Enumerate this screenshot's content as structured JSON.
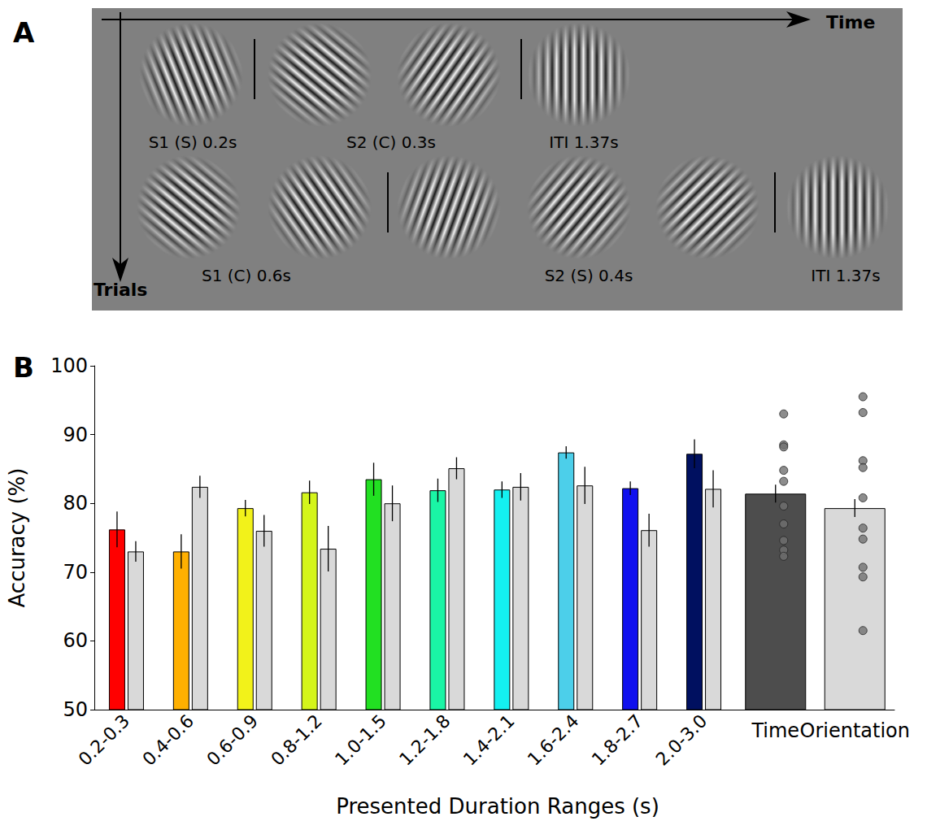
{
  "diagram": {
    "panel_label": "A",
    "x_axis": "Time",
    "y_axis": "Trials",
    "rows": [
      {
        "labels": [
          "S1 (S) 0.2s",
          "S2 (C) 0.3s",
          "ITI 1.37s"
        ]
      },
      {
        "labels": [
          "S1 (C) 0.6s",
          "S2 (S) 0.4s",
          "ITI 1.37s"
        ]
      }
    ]
  },
  "chart_data": {
    "type": "bar",
    "panel_label": "B",
    "xlabel": "Presented Duration Ranges (s)",
    "ylabel": "Accuracy (%)",
    "categories": [
      "0.2-0.3",
      "0.4-0.6",
      "0.6-0.9",
      "0.8-1.2",
      "1.0-1.5",
      "1.2-1.8",
      "1.4-2.1",
      "1.6-2.4",
      "1.8-2.7",
      "2.0-3.0"
    ],
    "series": [
      {
        "colors": [
          "#ff0000",
          "#ffb000",
          "#f2f21a",
          "#d4f51a",
          "#22e022",
          "#1af5a5",
          "#14f0f0",
          "#4ccfea",
          "#1010ee",
          "#001060"
        ],
        "values": [
          76.2,
          73.0,
          79.3,
          81.6,
          83.5,
          81.9,
          82.0,
          87.4,
          82.2,
          87.2
        ],
        "errors": [
          2.6,
          2.5,
          1.2,
          1.7,
          2.4,
          1.7,
          1.2,
          0.9,
          1.0,
          2.1
        ]
      },
      {
        "color": "#d9d9d9",
        "values": [
          73.0,
          82.4,
          76.0,
          73.4,
          80.0,
          85.1,
          82.4,
          82.6,
          76.1,
          82.1
        ],
        "errors": [
          1.5,
          1.6,
          2.3,
          3.3,
          2.6,
          1.6,
          2.0,
          2.7,
          2.4,
          2.7
        ]
      }
    ],
    "summary": {
      "categories": [
        "Time",
        "Orientation"
      ],
      "colors": [
        "#4d4d4d",
        "#d9d9d9"
      ],
      "values": [
        81.4,
        79.3
      ],
      "errors": [
        1.3,
        1.3
      ],
      "points": [
        [
          93.0,
          88.5,
          88.2,
          84.8,
          83.2,
          79.6,
          77.0,
          74.6,
          73.2,
          72.3
        ],
        [
          95.5,
          93.2,
          86.2,
          85.2,
          80.8,
          76.4,
          74.8,
          70.7,
          69.3,
          61.5
        ]
      ]
    },
    "ylim": [
      50,
      100
    ],
    "yticks": [
      50,
      60,
      70,
      80,
      90,
      100
    ],
    "grid": false
  }
}
